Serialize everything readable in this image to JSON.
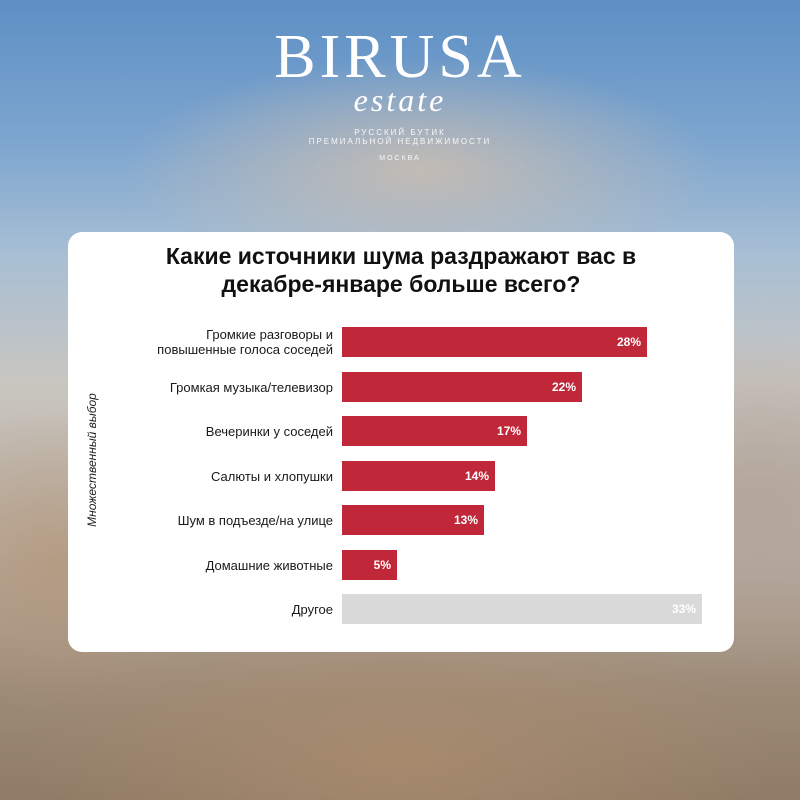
{
  "brand": {
    "name": "BIRUSA",
    "sub": "estate",
    "tagline1": "РУССКИЙ БУТИК",
    "tagline2": "ПРЕМИАЛЬНОЙ НЕДВИЖИМОСТИ",
    "city": "МОСКВА"
  },
  "colors": {
    "bar": "#c0283a",
    "other": "#d9d9d9"
  },
  "chart_data": {
    "type": "bar",
    "orientation": "horizontal",
    "title_lines": [
      "Какие источники шума раздражают вас в",
      "декабре-январе больше всего?"
    ],
    "ylabel": "Множественный выбор",
    "xmax": 33,
    "categories": [
      "Громкие разговоры и повышенные голоса соседей",
      "Громкая музыка/телевизор",
      "Вечеринки у соседей",
      "Салюты и хлопушки",
      "Шум в подъезде/на улице",
      "Домашние животные",
      "Другое"
    ],
    "values": [
      28,
      22,
      17,
      14,
      13,
      5,
      33
    ],
    "labels": [
      "28%",
      "22%",
      "17%",
      "14%",
      "13%",
      "5%",
      "33%"
    ],
    "highlight": [
      true,
      true,
      true,
      true,
      true,
      true,
      false
    ]
  }
}
